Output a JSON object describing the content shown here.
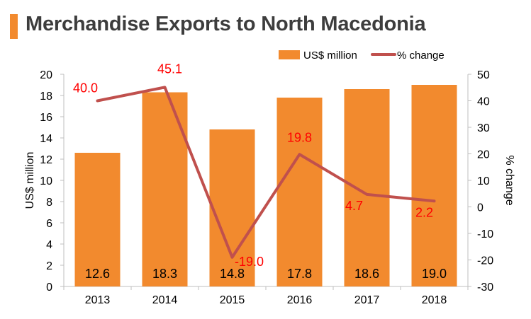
{
  "title": "Merchandise Exports to North Macedonia",
  "colors": {
    "bar": "#f28a2e",
    "line": "#c0504d",
    "pct_label": "#ff0000",
    "title_bar": "#f28a2e",
    "axis": "#bfbfbf",
    "text": "#000000"
  },
  "chart_data": {
    "type": "bar",
    "title": "Merchandise Exports to North Macedonia",
    "categories": [
      "2013",
      "2014",
      "2015",
      "2016",
      "2017",
      "2018"
    ],
    "series": [
      {
        "name": "US$ million",
        "type": "bar",
        "axis": "left",
        "values": [
          12.6,
          18.3,
          14.8,
          17.8,
          18.6,
          19.0
        ],
        "labels": [
          "12.6",
          "18.3",
          "14.8",
          "17.8",
          "18.6",
          "19.0"
        ]
      },
      {
        "name": "% change",
        "type": "line",
        "axis": "right",
        "values": [
          40.0,
          45.1,
          -19.0,
          19.8,
          4.7,
          2.2
        ],
        "labels": [
          "40.0",
          "45.1",
          "-19.0",
          "19.8",
          "4.7",
          "2.2"
        ]
      }
    ],
    "ylabel": "US$ million",
    "y2label": "% change",
    "ylim": [
      0,
      20
    ],
    "y2lim": [
      -30,
      50
    ],
    "yticks": [
      "0",
      "2",
      "4",
      "6",
      "8",
      "10",
      "12",
      "14",
      "16",
      "18",
      "20"
    ],
    "y2ticks": [
      "-30",
      "-20",
      "-10",
      "0",
      "10",
      "20",
      "30",
      "40",
      "50"
    ],
    "legend": [
      "US$ million",
      "% change"
    ],
    "legend_position": "top-right"
  }
}
